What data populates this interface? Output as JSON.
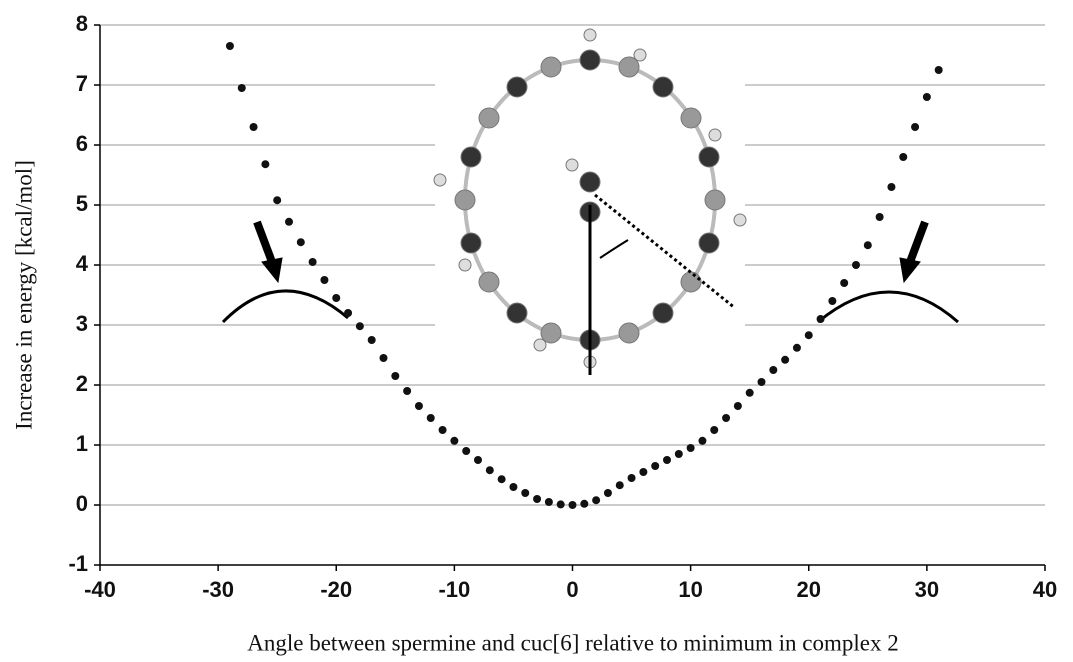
{
  "chart_data": {
    "type": "scatter",
    "x_label": "Angle between spermine and cuc[6] relative to minimum in complex 2",
    "y_label": "Increase in energy [kcal/mol]",
    "x": [
      -29,
      -28,
      -27,
      -26,
      -25,
      -24,
      -23,
      -22,
      -21,
      -20,
      -19,
      -18,
      -17,
      -16,
      -15,
      -14,
      -13,
      -12,
      -11,
      -10,
      -9,
      -8,
      -7,
      -6,
      -5,
      -4,
      -3,
      -2,
      -1,
      0,
      1,
      2,
      3,
      4,
      5,
      6,
      7,
      8,
      9,
      10,
      11,
      12,
      13,
      14,
      15,
      16,
      17,
      18,
      19,
      20,
      21,
      22,
      23,
      24,
      25,
      26,
      27,
      28,
      29,
      30,
      31
    ],
    "values": [
      7.65,
      6.95,
      6.3,
      5.68,
      5.08,
      4.72,
      4.38,
      4.05,
      3.75,
      3.45,
      3.2,
      2.98,
      2.75,
      2.45,
      2.15,
      1.9,
      1.65,
      1.45,
      1.25,
      1.07,
      0.9,
      0.75,
      0.58,
      0.43,
      0.3,
      0.2,
      0.1,
      0.05,
      0.01,
      0,
      0.02,
      0.08,
      0.2,
      0.33,
      0.45,
      0.55,
      0.65,
      0.75,
      0.85,
      0.95,
      1.07,
      1.25,
      1.45,
      1.65,
      1.87,
      2.05,
      2.25,
      2.42,
      2.62,
      2.83,
      3.1,
      3.4,
      3.7,
      4.0,
      4.33,
      4.8,
      5.3,
      5.8,
      6.3,
      6.8,
      7.25
    ],
    "color": "#111111",
    "xlim": [
      -40,
      40
    ],
    "xticks": [
      -40,
      -30,
      -20,
      -10,
      0,
      10,
      20,
      30,
      40
    ],
    "ylim": [
      -1,
      8
    ],
    "yticks": [
      -1,
      0,
      1,
      2,
      3,
      4,
      5,
      6,
      7,
      8
    ],
    "grid": true
  }
}
